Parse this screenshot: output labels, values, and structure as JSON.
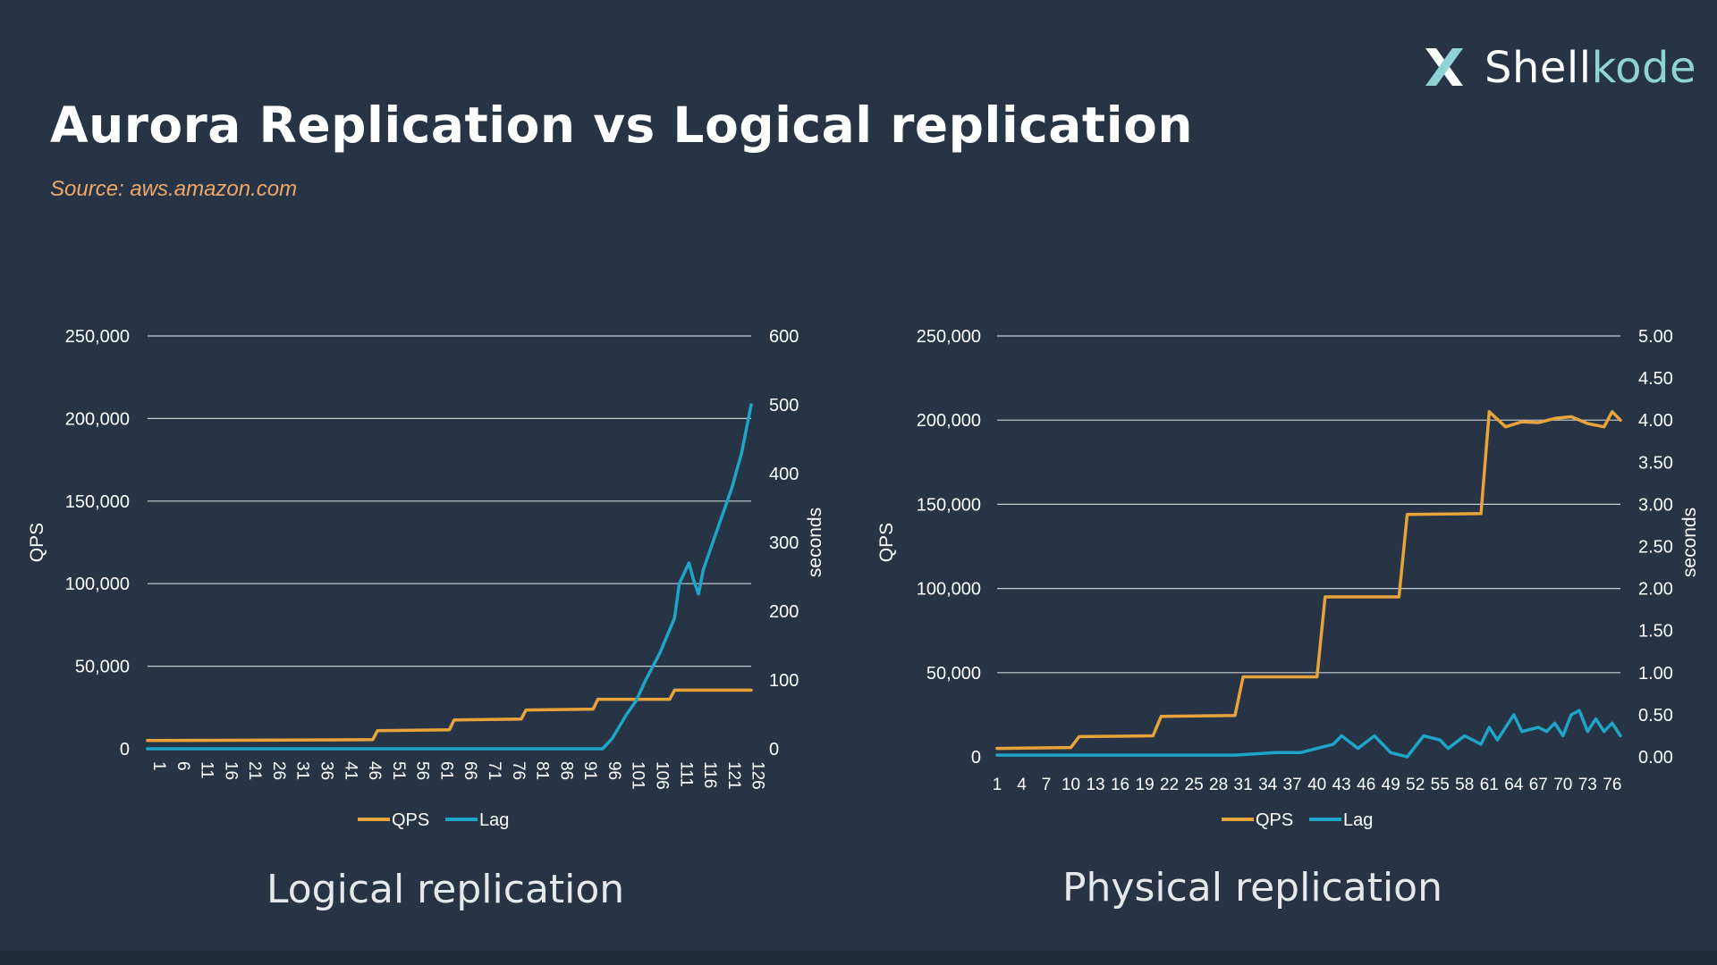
{
  "slide": {
    "title": "Aurora Replication vs Logical replication",
    "source": "Source: aws.amazon.com"
  },
  "logo": {
    "text_a": "Shell",
    "text_b": "kode",
    "icon": "x-logo-icon"
  },
  "colors": {
    "qps": "#e8a33a",
    "lag": "#1ea5c8",
    "grid": "#c9ced4",
    "text": "#ffffff"
  },
  "chart_data": [
    {
      "type": "line",
      "caption": "Logical replication",
      "ylabel_left": "QPS",
      "ylabel_right": "seconds",
      "left_ticks": [
        "0",
        "50,000",
        "100,000",
        "150,000",
        "200,000",
        "250,000"
      ],
      "right_ticks": [
        "0",
        "100",
        "200",
        "300",
        "400",
        "500",
        "600"
      ],
      "ylim_left": [
        0,
        250000
      ],
      "ylim_right": [
        0,
        600
      ],
      "x_count": 127,
      "x_tick_labels": [
        "1",
        "6",
        "11",
        "16",
        "21",
        "26",
        "31",
        "36",
        "41",
        "46",
        "51",
        "56",
        "61",
        "66",
        "71",
        "76",
        "81",
        "86",
        "91",
        "96",
        "101",
        "106",
        "111",
        "116",
        "121",
        "126"
      ],
      "legend": [
        "QPS",
        "Lag"
      ],
      "legend_position": "bottom",
      "grid": true,
      "series": [
        {
          "name": "QPS",
          "axis": "left",
          "points": [
            [
              1,
              5000
            ],
            [
              48,
              5500
            ],
            [
              49,
              11000
            ],
            [
              64,
              11500
            ],
            [
              65,
              17500
            ],
            [
              79,
              18000
            ],
            [
              80,
              23500
            ],
            [
              94,
              24000
            ],
            [
              95,
              30000
            ],
            [
              110,
              30000
            ],
            [
              111,
              35500
            ],
            [
              127,
              35500
            ]
          ]
        },
        {
          "name": "Lag",
          "axis": "right",
          "points": [
            [
              1,
              0
            ],
            [
              96,
              0
            ],
            [
              98,
              15
            ],
            [
              101,
              50
            ],
            [
              103,
              70
            ],
            [
              105,
              100
            ],
            [
              108,
              140
            ],
            [
              111,
              190
            ],
            [
              112,
              240
            ],
            [
              114,
              270
            ],
            [
              115,
              245
            ],
            [
              116,
              225
            ],
            [
              117,
              260
            ],
            [
              120,
              320
            ],
            [
              123,
              380
            ],
            [
              125,
              430
            ],
            [
              127,
              500
            ]
          ]
        }
      ]
    },
    {
      "type": "line",
      "caption": "Physical replication",
      "ylabel_left": "QPS",
      "ylabel_right": "seconds",
      "left_ticks": [
        "0",
        "50,000",
        "100,000",
        "150,000",
        "200,000",
        "250,000"
      ],
      "right_ticks": [
        "0.00",
        "0.50",
        "1.00",
        "1.50",
        "2.00",
        "2.50",
        "3.00",
        "3.50",
        "4.00",
        "4.50",
        "5.00"
      ],
      "ylim_left": [
        0,
        250000
      ],
      "ylim_right": [
        0,
        5
      ],
      "x_count": 77,
      "x_tick_labels": [
        "1",
        "4",
        "7",
        "10",
        "13",
        "16",
        "19",
        "22",
        "25",
        "28",
        "31",
        "34",
        "37",
        "40",
        "43",
        "46",
        "49",
        "52",
        "55",
        "58",
        "61",
        "64",
        "67",
        "70",
        "73",
        "76"
      ],
      "legend": [
        "QPS",
        "Lag"
      ],
      "legend_position": "bottom",
      "grid": true,
      "series": [
        {
          "name": "QPS",
          "axis": "left",
          "points": [
            [
              1,
              5000
            ],
            [
              10,
              5500
            ],
            [
              11,
              12000
            ],
            [
              20,
              12500
            ],
            [
              21,
              24000
            ],
            [
              30,
              24500
            ],
            [
              31,
              47500
            ],
            [
              40,
              47500
            ],
            [
              41,
              95000
            ],
            [
              50,
              95000
            ],
            [
              51,
              144000
            ],
            [
              60,
              144500
            ],
            [
              61,
              205000
            ],
            [
              63,
              196000
            ],
            [
              65,
              199000
            ],
            [
              67,
              198500
            ],
            [
              69,
              201000
            ],
            [
              71,
              202000
            ],
            [
              73,
              198000
            ],
            [
              75,
              196000
            ],
            [
              76,
              205000
            ],
            [
              77,
              200000
            ]
          ]
        },
        {
          "name": "Lag",
          "axis": "right",
          "points": [
            [
              1,
              0.02
            ],
            [
              10,
              0.02
            ],
            [
              20,
              0.02
            ],
            [
              30,
              0.02
            ],
            [
              35,
              0.05
            ],
            [
              38,
              0.05
            ],
            [
              40,
              0.1
            ],
            [
              42,
              0.15
            ],
            [
              43,
              0.25
            ],
            [
              45,
              0.1
            ],
            [
              47,
              0.25
            ],
            [
              49,
              0.05
            ],
            [
              51,
              0.0
            ],
            [
              53,
              0.25
            ],
            [
              55,
              0.2
            ],
            [
              56,
              0.1
            ],
            [
              58,
              0.25
            ],
            [
              60,
              0.15
            ],
            [
              61,
              0.35
            ],
            [
              62,
              0.2
            ],
            [
              64,
              0.5
            ],
            [
              65,
              0.3
            ],
            [
              67,
              0.35
            ],
            [
              68,
              0.3
            ],
            [
              69,
              0.4
            ],
            [
              70,
              0.25
            ],
            [
              71,
              0.5
            ],
            [
              72,
              0.55
            ],
            [
              73,
              0.3
            ],
            [
              74,
              0.45
            ],
            [
              75,
              0.3
            ],
            [
              76,
              0.4
            ],
            [
              77,
              0.25
            ]
          ]
        }
      ]
    }
  ]
}
